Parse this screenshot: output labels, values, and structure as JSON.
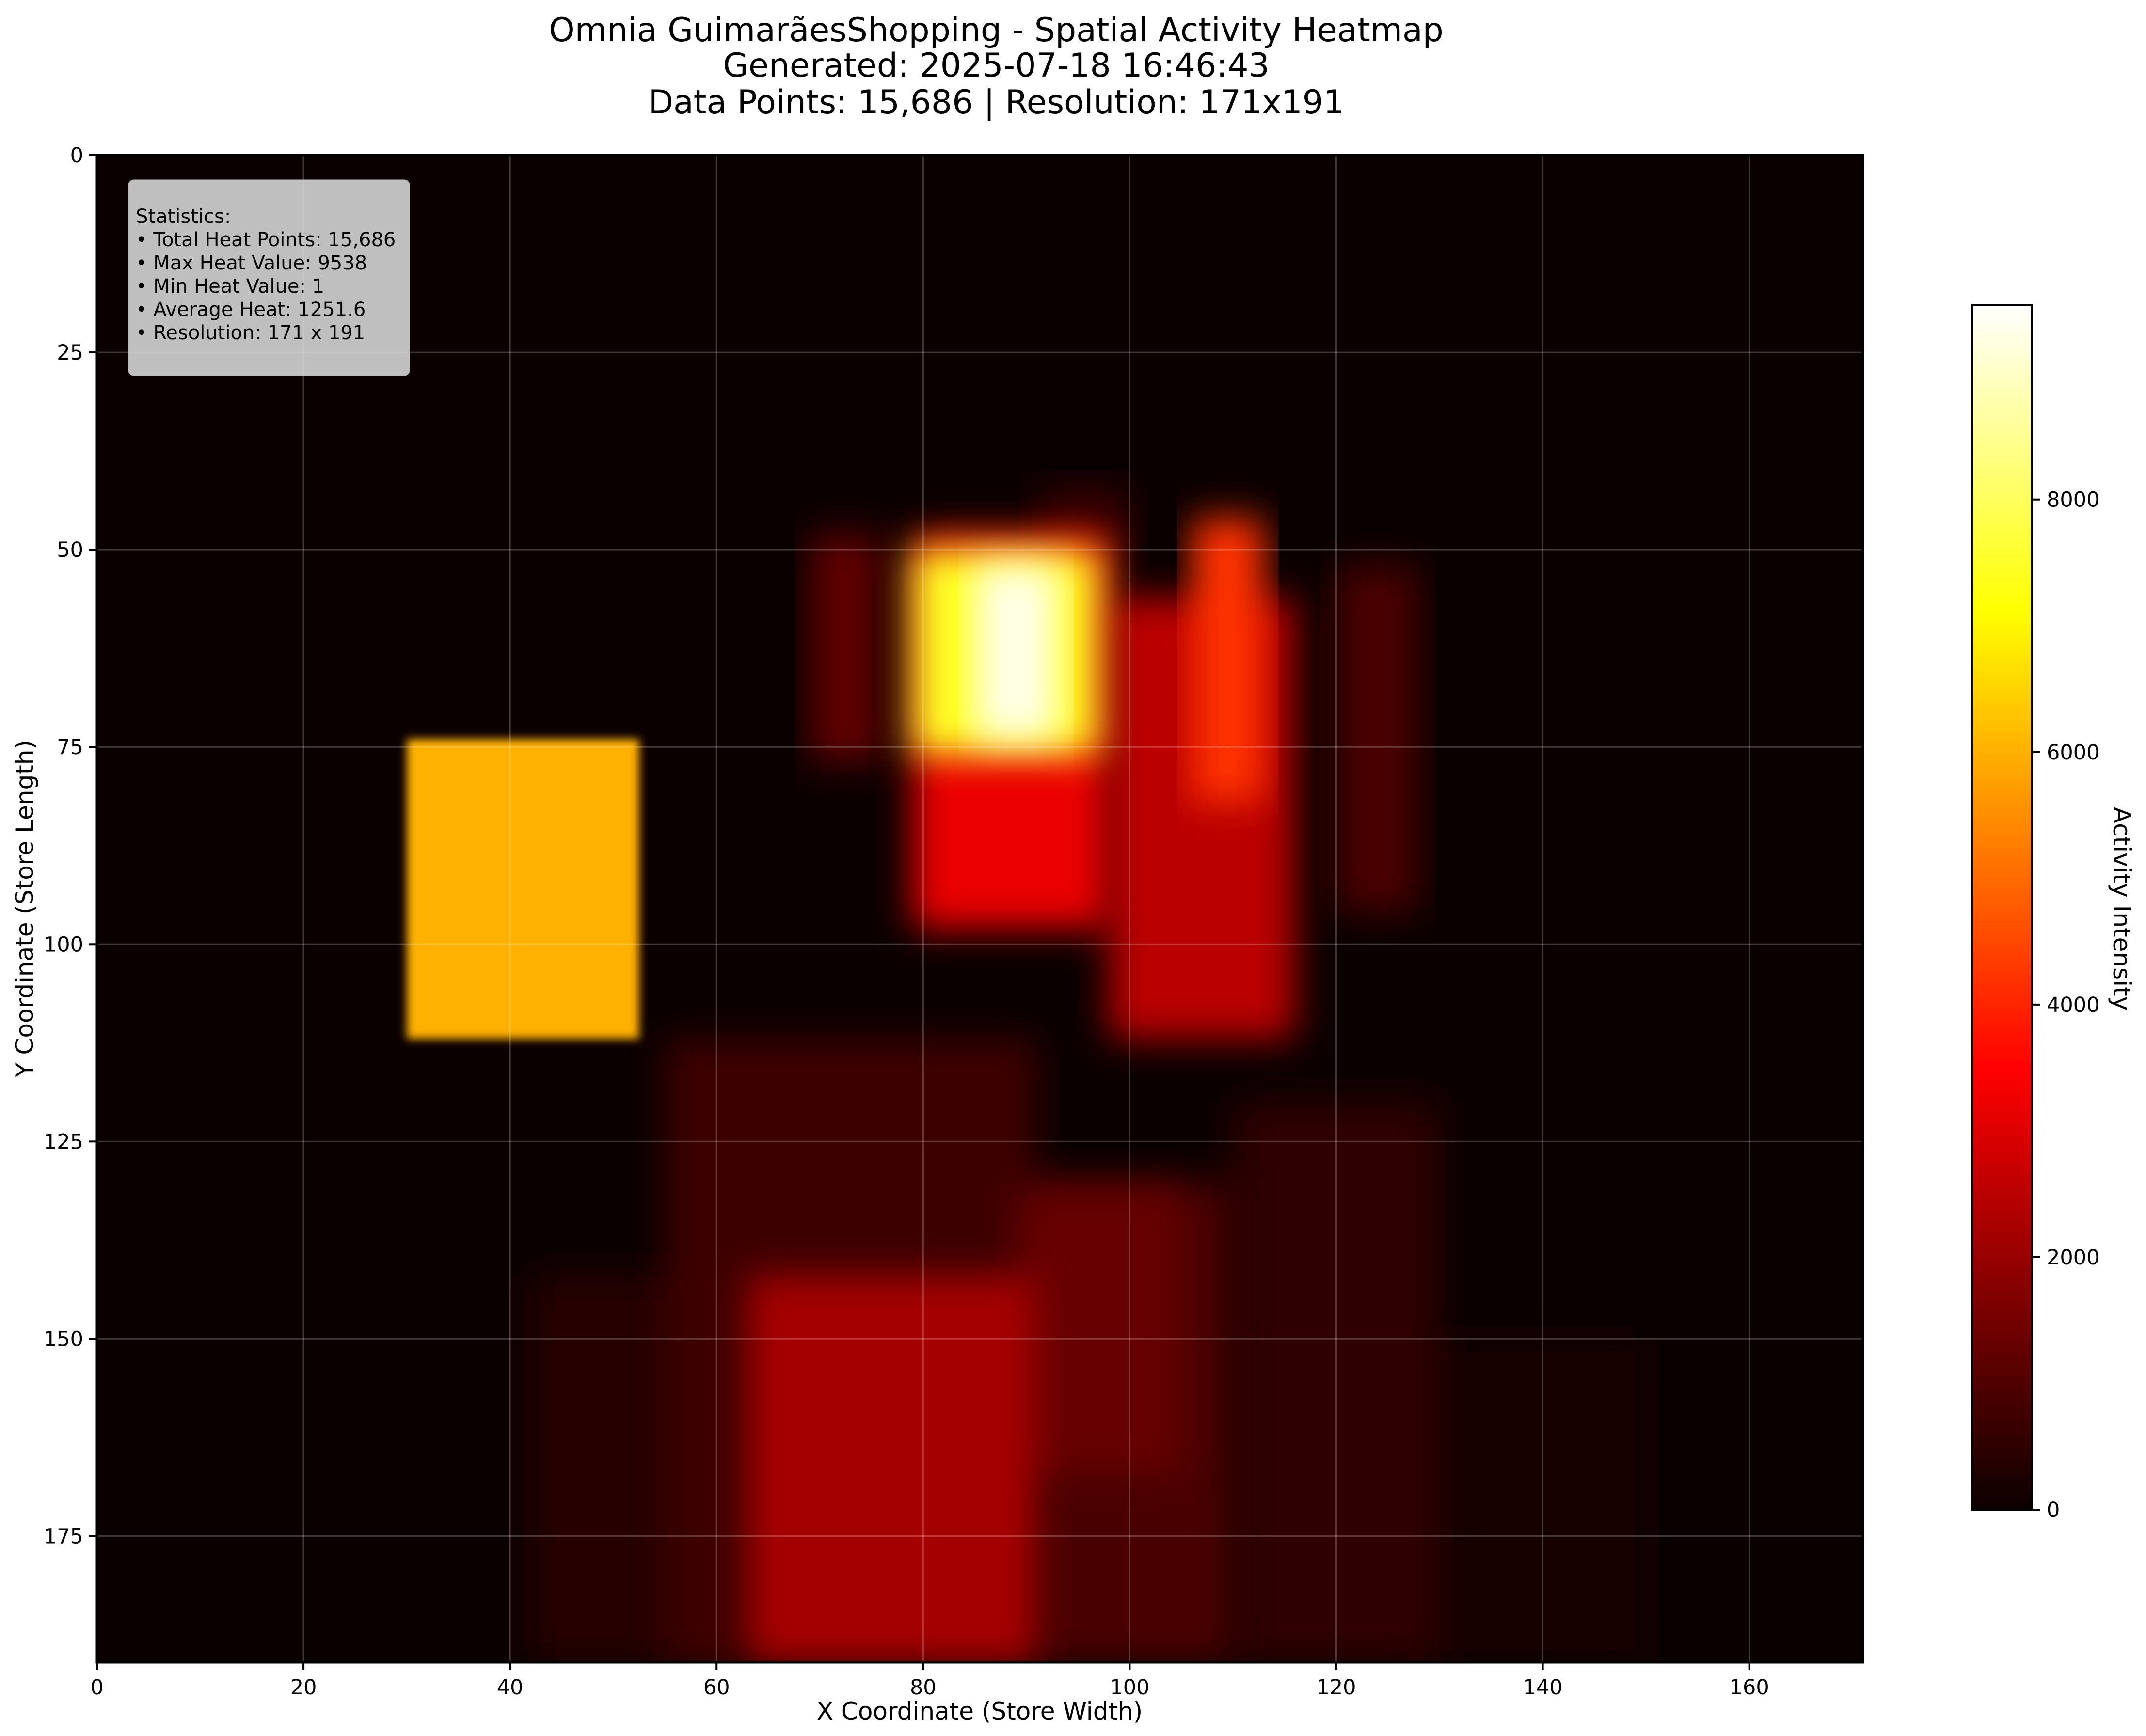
{
  "chart_data": {
    "type": "heatmap",
    "title_lines": [
      "Omnia GuimarãesShopping - Spatial Activity Heatmap",
      "Generated: 2025-07-18 16:46:43",
      "Data Points: 15,686 | Resolution: 171x191"
    ],
    "xlabel": "X Coordinate (Store Width)",
    "ylabel": "Y Coordinate (Store Length)",
    "colorbar_label": "Activity Intensity",
    "xlim": [
      0,
      171
    ],
    "ylim": [
      191,
      0
    ],
    "x_ticks": [
      0,
      20,
      40,
      60,
      80,
      100,
      120,
      140,
      160
    ],
    "y_ticks": [
      0,
      25,
      50,
      75,
      100,
      125,
      150,
      175
    ],
    "colorbar_ticks": [
      0,
      2000,
      4000,
      6000,
      8000
    ],
    "value_range": [
      0,
      9538
    ],
    "colormap": "hot",
    "grid": true,
    "stats_box_position": "top-left",
    "stats": {
      "heading": "Statistics:",
      "lines": [
        "• Total Heat Points: 15,686",
        "• Max Heat Value: 9538",
        "• Min Heat Value: 1",
        "• Average Heat: 1251.6",
        "• Resolution: 171 x 191"
      ]
    },
    "regions": [
      {
        "x0": 30,
        "x1": 52.5,
        "y0": 74,
        "y1": 112,
        "value": 6000
      },
      {
        "x0": 79,
        "x1": 97,
        "y0": 50,
        "y1": 76,
        "value": 7500
      },
      {
        "x0": 85,
        "x1": 93,
        "y0": 52,
        "y1": 74,
        "value": 9300
      },
      {
        "x0": 79,
        "x1": 98,
        "y0": 48,
        "y1": 98,
        "value": 3200
      },
      {
        "x0": 98,
        "x1": 116,
        "y0": 56,
        "y1": 112,
        "value": 2500
      },
      {
        "x0": 106,
        "x1": 113,
        "y0": 46,
        "y1": 82,
        "value": 4200
      },
      {
        "x0": 69,
        "x1": 76,
        "y0": 48,
        "y1": 77,
        "value": 1200
      },
      {
        "x0": 120,
        "x1": 128,
        "y0": 52,
        "y1": 96,
        "value": 900
      },
      {
        "x0": 91,
        "x1": 100,
        "y0": 42,
        "y1": 52,
        "value": 600
      },
      {
        "x0": 55,
        "x1": 91,
        "y0": 112,
        "y1": 191,
        "value": 700
      },
      {
        "x0": 63,
        "x1": 91,
        "y0": 142,
        "y1": 191,
        "value": 2200
      },
      {
        "x0": 90,
        "x1": 110,
        "y0": 130,
        "y1": 191,
        "value": 900
      },
      {
        "x0": 89,
        "x1": 105,
        "y0": 131,
        "y1": 167,
        "value": 1300
      },
      {
        "x0": 110,
        "x1": 130,
        "y0": 120,
        "y1": 191,
        "value": 500
      },
      {
        "x0": 42,
        "x1": 62,
        "y0": 142,
        "y1": 191,
        "value": 400
      },
      {
        "x0": 128,
        "x1": 150,
        "y0": 150,
        "y1": 191,
        "value": 200
      }
    ]
  }
}
